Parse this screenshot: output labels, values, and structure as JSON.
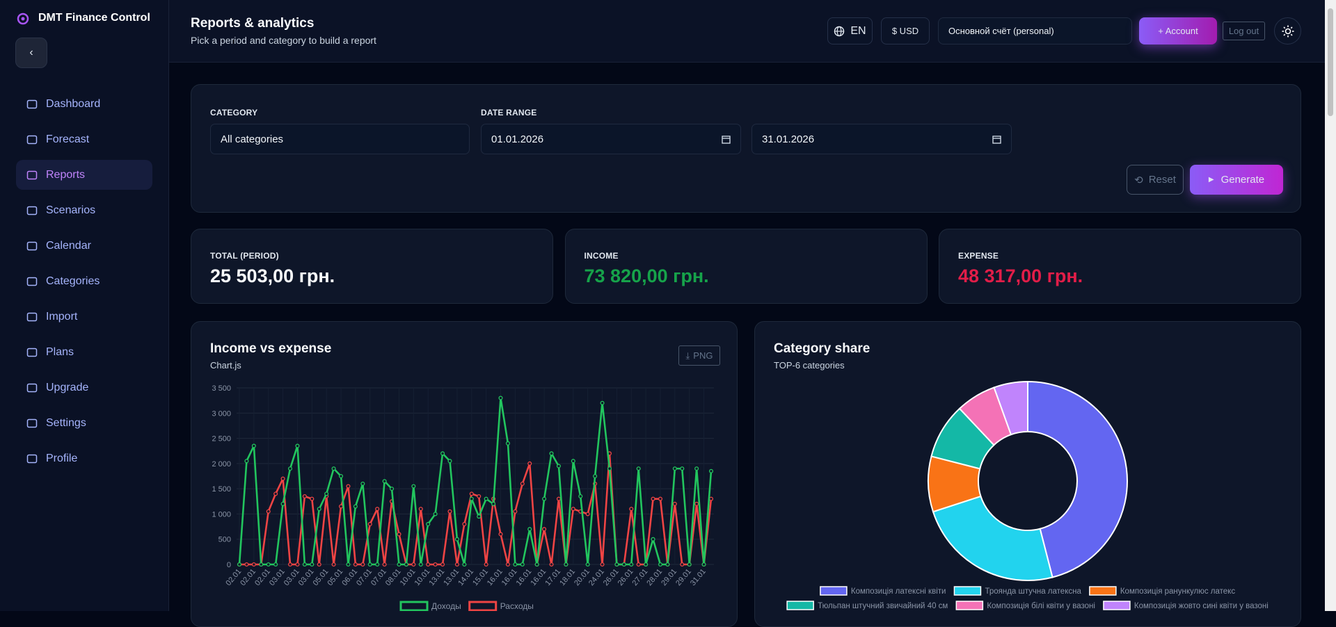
{
  "sidebar": {
    "brand": "DMT Finance Control",
    "nav": [
      "Dashboard",
      "Forecast",
      "Reports",
      "Scenarios",
      "Calendar",
      "Categories",
      "Import",
      "Plans",
      "Upgrade",
      "Settings",
      "Profile"
    ]
  },
  "header": {
    "title": "Reports & analytics",
    "subtitle": "Pick a period and category to build a report",
    "language": "EN",
    "currency": "$ USD",
    "account": "Основной счёт (personal)",
    "add_account": "+ Account",
    "logout": "Log out"
  },
  "filters": {
    "category_label": "CATEGORY",
    "category": "All categories",
    "date_range_label": "DATE RANGE",
    "date_from": "01.01.2026",
    "date_to": "31.01.2026",
    "reset": "Reset",
    "generate": "Generate"
  },
  "stats": [
    {
      "label": "TOTAL (PERIOD)",
      "value": "25 503,00 грн.",
      "color": "#f8fafc"
    },
    {
      "label": "INCOME",
      "value": "73 820,00 грн.",
      "color": "#16a34a"
    },
    {
      "label": "EXPENSE",
      "value": "48 317,00 грн.",
      "color": "#e11d48"
    }
  ],
  "charts": [
    {
      "type": "line",
      "title": "Income vs expense",
      "subtitle": "Chart.js",
      "button": "PNG",
      "categories": [
        "02.01",
        null,
        "02.01",
        null,
        "02.01",
        null,
        "03.01",
        null,
        "03.01",
        null,
        "03.01",
        null,
        "05.01",
        null,
        "05.01",
        null,
        "06.01",
        null,
        "07.01",
        null,
        "07.01",
        null,
        "08.01",
        null,
        "10.01",
        null,
        "10.01",
        null,
        "13.01",
        null,
        "13.01",
        null,
        "14.01",
        null,
        "15.01",
        null,
        "16.01",
        null,
        "16.01",
        null,
        "16.01",
        null,
        "16.01",
        null,
        "17.01",
        null,
        "18.01",
        null,
        "20.01",
        null,
        "24.01",
        null,
        "26.01",
        null,
        "26.01",
        null,
        "27.01",
        null,
        "28.01",
        null,
        "29.01",
        null,
        "29.01",
        null,
        "31.01",
        null
      ],
      "series": [
        {
          "name": "Доходы",
          "color": "#22c55e",
          "values": [
            0,
            2050,
            2350,
            0,
            0,
            0,
            1200,
            1900,
            2350,
            0,
            0,
            1100,
            1400,
            1900,
            1750,
            0,
            1150,
            1600,
            0,
            0,
            1650,
            1500,
            0,
            0,
            1550,
            0,
            800,
            1000,
            2200,
            2050,
            500,
            0,
            1300,
            950,
            1300,
            1200,
            3300,
            2400,
            0,
            0,
            700,
            0,
            1300,
            2200,
            1950,
            0,
            2050,
            1350,
            0,
            1750,
            3200,
            1900,
            0,
            0,
            0,
            1900,
            0,
            500,
            0,
            0,
            1900,
            1900,
            0,
            1900,
            0,
            1850
          ]
        },
        {
          "name": "Расходы",
          "color": "#ef4444",
          "values": [
            0,
            0,
            0,
            0,
            1050,
            1400,
            1700,
            0,
            0,
            1350,
            1300,
            0,
            1350,
            0,
            1150,
            1550,
            0,
            0,
            800,
            1100,
            0,
            1250,
            600,
            0,
            0,
            1100,
            0,
            0,
            0,
            1050,
            0,
            800,
            1400,
            1350,
            0,
            1300,
            600,
            0,
            1050,
            1600,
            2000,
            0,
            700,
            0,
            1300,
            0,
            1100,
            1050,
            1000,
            1600,
            0,
            2200,
            0,
            0,
            1100,
            0,
            0,
            1300,
            1300,
            0,
            1200,
            0,
            0,
            1200,
            0,
            1300
          ]
        }
      ],
      "ylim": [
        0,
        3500
      ],
      "yticks": [
        0,
        500,
        {
          "value": 1000,
          "label": "1 000"
        },
        {
          "value": 1500,
          "label": "1 500"
        },
        {
          "value": 2000,
          "label": "2 000"
        },
        {
          "value": 2500,
          "label": "2 500"
        },
        {
          "value": 3000,
          "label": "3 000"
        },
        {
          "value": 3500,
          "label": "3 500"
        }
      ],
      "grid": true
    },
    {
      "type": "doughnut",
      "title": "Category share",
      "subtitle": "TOP-6 categories",
      "categories": [
        "Композиція латексні квіти",
        "Троянда штучна латексна",
        "Композиція ранункулюс латекс",
        "Тюльпан штучний звичайний 40 см",
        "Композиція білі квіти у вазоні",
        "Композиція жовто сині квіти у вазоні"
      ],
      "values": [
        46,
        24,
        9,
        9,
        6.5,
        5.5
      ],
      "colors": [
        "#6366f1",
        "#22d3ee",
        "#f97316",
        "#14b8a6",
        "#f472b6",
        "#c084fc"
      ]
    }
  ]
}
